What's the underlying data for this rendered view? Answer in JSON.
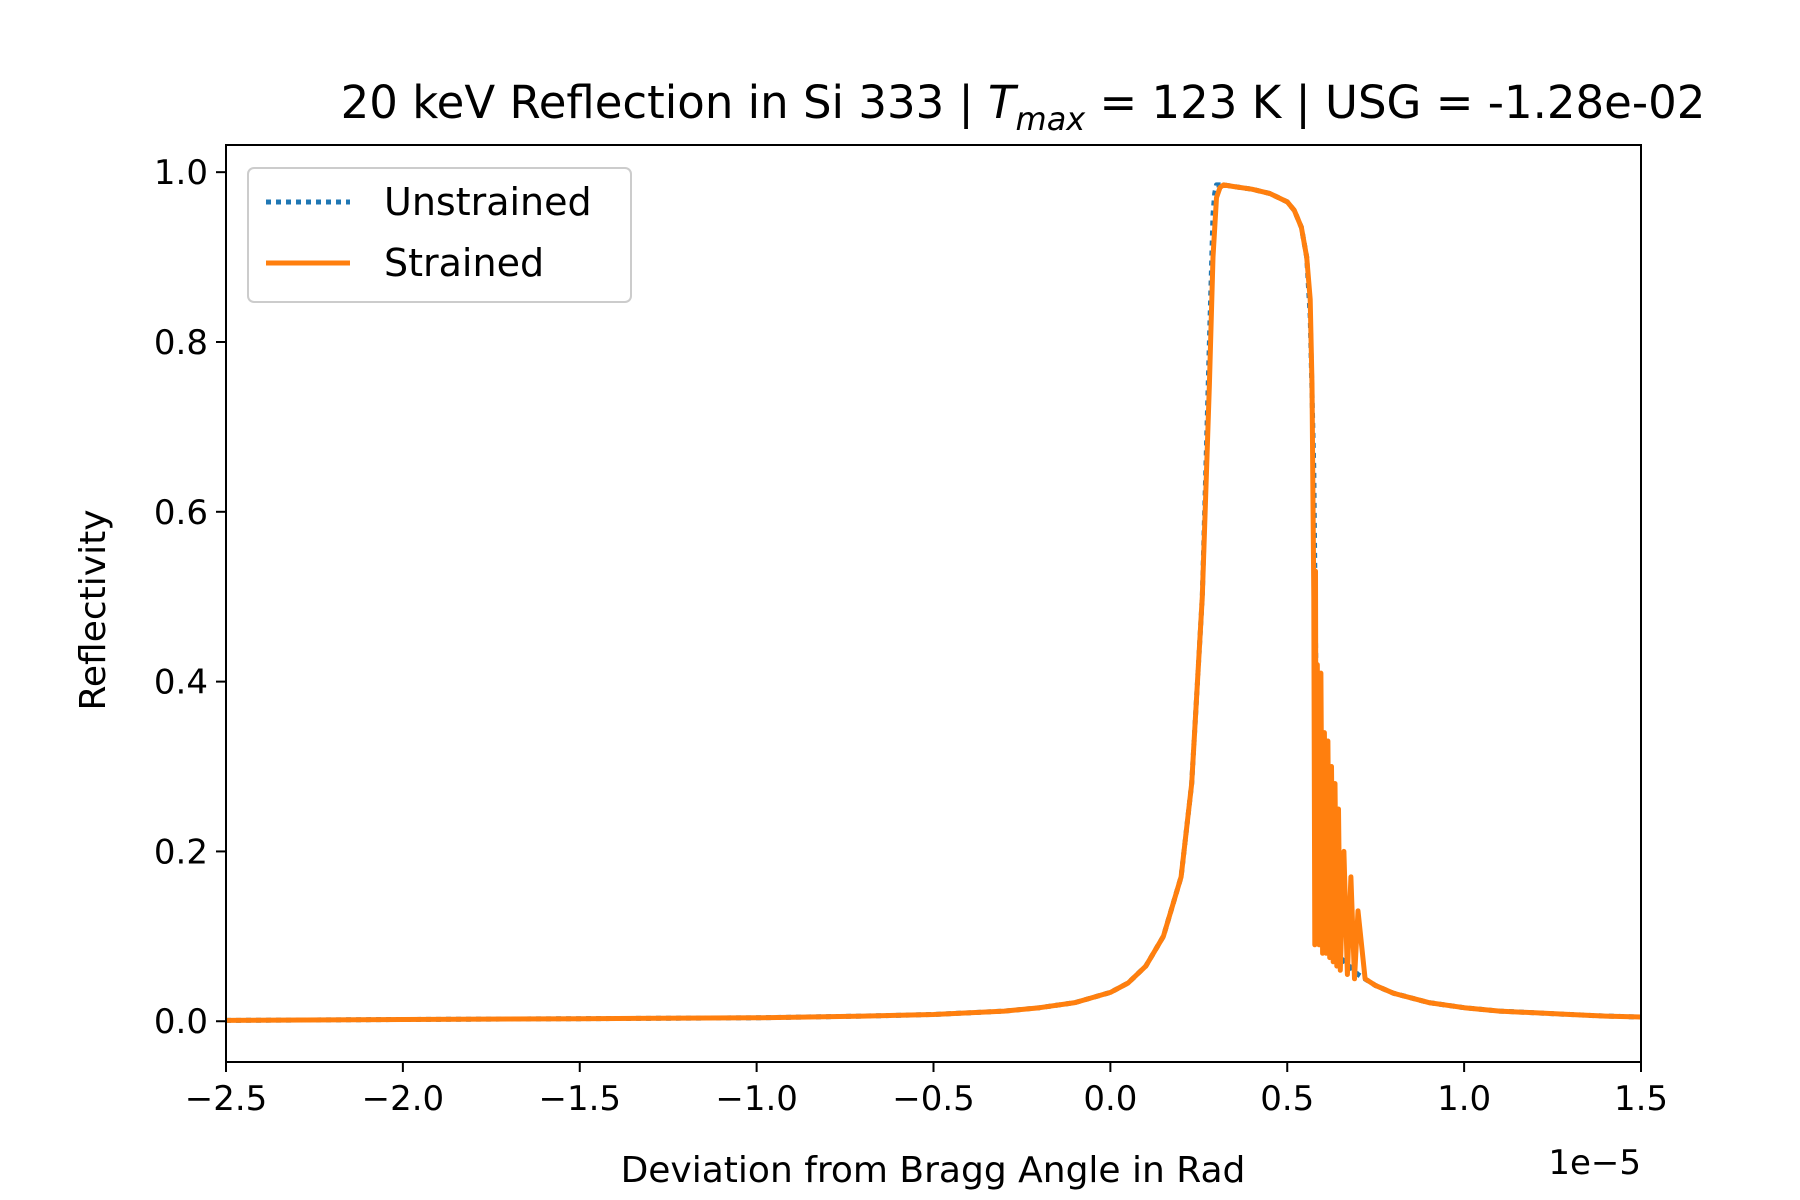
{
  "chart_data": {
    "type": "line",
    "title": {
      "prefix": "20 keV Reflection in Si 333 | ",
      "tmax_symbol": "T",
      "tmax_subscript": "max",
      "suffix": " = 123 K | USG = -1.28e-02"
    },
    "xlabel": "Deviation from Bragg Angle in Rad",
    "ylabel": "Reflectivity",
    "x_offset_label": "1e−5",
    "xlim": [
      -2.5,
      1.5
    ],
    "ylim": [
      -0.048,
      1.032
    ],
    "x_ticks": [
      -2.5,
      -2.0,
      -1.5,
      -1.0,
      -0.5,
      0.0,
      0.5,
      1.0,
      1.5
    ],
    "x_tick_labels": [
      "−2.5",
      "−2.0",
      "−1.5",
      "−1.0",
      "−0.5",
      "0.0",
      "0.5",
      "1.0",
      "1.5"
    ],
    "y_ticks": [
      0.0,
      0.2,
      0.4,
      0.6,
      0.8,
      1.0
    ],
    "y_tick_labels": [
      "0.0",
      "0.2",
      "0.4",
      "0.6",
      "0.8",
      "1.0"
    ],
    "grid": false,
    "legend": {
      "position": "top-left"
    },
    "series": [
      {
        "name": "Unstrained",
        "color": "#1f77b4",
        "style": "dotted",
        "x": [
          -2.5,
          -2.0,
          -1.5,
          -1.0,
          -0.7,
          -0.5,
          -0.3,
          -0.2,
          -0.1,
          0.0,
          0.05,
          0.1,
          0.15,
          0.2,
          0.23,
          0.26,
          0.28,
          0.29,
          0.295,
          0.3,
          0.32,
          0.35,
          0.4,
          0.45,
          0.5,
          0.52,
          0.54,
          0.555,
          0.565,
          0.575,
          0.58,
          0.585,
          0.59,
          0.6,
          0.62,
          0.65,
          0.7,
          0.75,
          0.8,
          0.9,
          1.0,
          1.1,
          1.2,
          1.3,
          1.4,
          1.5
        ],
        "y": [
          0.001,
          0.002,
          0.003,
          0.004,
          0.006,
          0.008,
          0.012,
          0.016,
          0.022,
          0.034,
          0.045,
          0.065,
          0.1,
          0.17,
          0.28,
          0.5,
          0.8,
          0.95,
          0.975,
          0.985,
          0.985,
          0.983,
          0.98,
          0.975,
          0.965,
          0.955,
          0.935,
          0.9,
          0.83,
          0.65,
          0.45,
          0.3,
          0.2,
          0.14,
          0.1,
          0.075,
          0.055,
          0.042,
          0.033,
          0.022,
          0.016,
          0.012,
          0.01,
          0.008,
          0.006,
          0.005
        ]
      },
      {
        "name": "Strained",
        "color": "#ff7f0e",
        "style": "solid",
        "x": [
          -2.5,
          -2.0,
          -1.5,
          -1.0,
          -0.7,
          -0.5,
          -0.3,
          -0.2,
          -0.1,
          0.0,
          0.05,
          0.1,
          0.15,
          0.2,
          0.23,
          0.26,
          0.28,
          0.29,
          0.3,
          0.31,
          0.32,
          0.35,
          0.4,
          0.45,
          0.5,
          0.52,
          0.54,
          0.555,
          0.565,
          0.57,
          0.575,
          0.578,
          0.58,
          0.582,
          0.585,
          0.59,
          0.595,
          0.6,
          0.605,
          0.61,
          0.615,
          0.62,
          0.625,
          0.63,
          0.635,
          0.64,
          0.645,
          0.65,
          0.66,
          0.67,
          0.68,
          0.69,
          0.7,
          0.72,
          0.75,
          0.8,
          0.9,
          1.0,
          1.1,
          1.2,
          1.3,
          1.4,
          1.5
        ],
        "y": [
          0.001,
          0.002,
          0.003,
          0.004,
          0.006,
          0.008,
          0.012,
          0.016,
          0.022,
          0.034,
          0.045,
          0.065,
          0.1,
          0.17,
          0.28,
          0.5,
          0.75,
          0.9,
          0.97,
          0.982,
          0.985,
          0.983,
          0.98,
          0.975,
          0.965,
          0.955,
          0.935,
          0.9,
          0.85,
          0.75,
          0.5,
          0.09,
          0.53,
          0.1,
          0.42,
          0.09,
          0.41,
          0.08,
          0.34,
          0.08,
          0.33,
          0.075,
          0.3,
          0.07,
          0.28,
          0.065,
          0.25,
          0.06,
          0.2,
          0.055,
          0.17,
          0.05,
          0.13,
          0.05,
          0.042,
          0.033,
          0.022,
          0.016,
          0.012,
          0.01,
          0.008,
          0.006,
          0.005
        ]
      }
    ]
  }
}
